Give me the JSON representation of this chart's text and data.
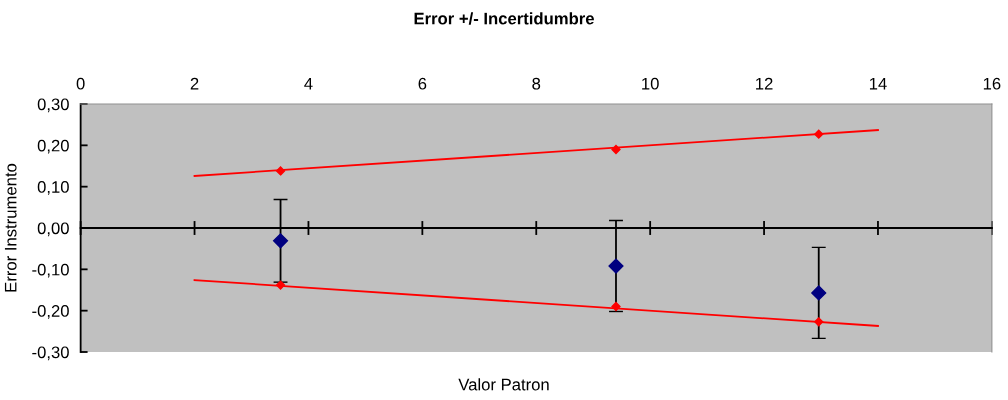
{
  "chart_data": {
    "type": "scatter",
    "title": "Error +/- Incertidumbre",
    "xlabel": "Valor Patron",
    "ylabel": "Error Instrumento",
    "xlim": [
      0,
      16
    ],
    "xticks": [
      0,
      2,
      4,
      6,
      8,
      10,
      12,
      14,
      16
    ],
    "ylim": [
      -0.3,
      0.3
    ],
    "yticks": [
      {
        "value": -0.3,
        "label": "-0,30"
      },
      {
        "value": -0.2,
        "label": "-0,20"
      },
      {
        "value": -0.1,
        "label": "-0,10"
      },
      {
        "value": 0,
        "label": "0,00"
      },
      {
        "value": 0.1,
        "label": "0,10"
      },
      {
        "value": 0.2,
        "label": "0,20"
      },
      {
        "value": 0.3,
        "label": "0,30"
      }
    ],
    "series": [
      {
        "marker": "diamond",
        "color": "#000080",
        "x": [
          3.51,
          9.4,
          12.96
        ],
        "values": [
          -0.031,
          -0.092,
          -0.157
        ],
        "errors": [
          0.1,
          0.11,
          0.11
        ]
      },
      {
        "type": "line",
        "marker": "none",
        "color": "#ff0000",
        "x": [
          2,
          14
        ],
        "values": [
          0.126,
          0.237
        ]
      },
      {
        "type": "line",
        "marker": "none",
        "color": "#ff0000",
        "x": [
          2,
          14
        ],
        "values": [
          -0.126,
          -0.237
        ]
      },
      {
        "marker": "diamond",
        "color": "#ff0000",
        "x": [
          3.51,
          9.4,
          12.96
        ],
        "values": [
          0.138,
          0.19,
          0.227
        ]
      },
      {
        "marker": "diamond",
        "color": "#ff0000",
        "x": [
          3.51,
          9.4,
          12.96
        ],
        "values": [
          -0.138,
          -0.19,
          -0.227
        ]
      }
    ]
  }
}
